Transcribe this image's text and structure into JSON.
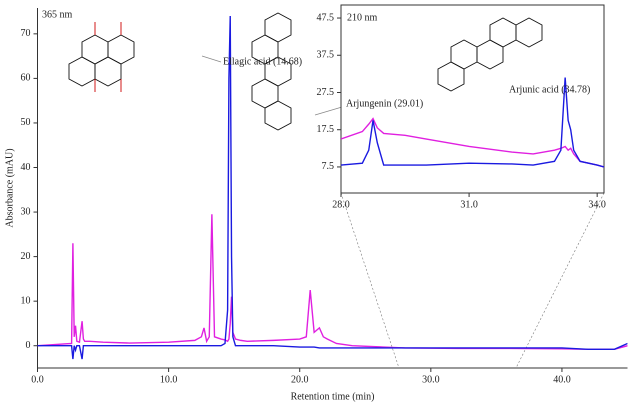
{
  "chart_data": [
    {
      "type": "line",
      "xlabel": "Retention time (min)",
      "ylabel": "Absorbance (mAU)",
      "annotations": [
        "365 nm",
        "Ellagic acid (14.68)"
      ],
      "xlim": [
        0,
        45
      ],
      "ylim": [
        -5,
        75.8
      ],
      "xticks": [
        {
          "value": 0,
          "label": "0.0"
        },
        {
          "value": 10,
          "label": "10.0"
        },
        {
          "value": 20,
          "label": "20.0"
        },
        {
          "value": 30,
          "label": "30.0"
        },
        {
          "value": 40,
          "label": "40.0"
        }
      ],
      "yticks": [
        0,
        10,
        20,
        30,
        40,
        50,
        60,
        70
      ],
      "x": [
        0,
        2.6,
        2.7,
        2.8,
        2.9,
        3.0,
        3.2,
        3.4,
        3.5,
        3.6,
        4,
        5,
        7,
        10,
        12,
        12.5,
        12.7,
        12.9,
        13.1,
        13.3,
        13.5,
        14,
        14.3,
        14.5,
        14.6,
        14.7,
        14.8,
        14.9,
        15.1,
        15.5,
        16,
        18,
        20,
        20.5,
        20.8,
        21.1,
        21.5,
        21.8,
        22.1,
        22.8,
        24,
        28,
        32,
        36,
        40,
        42,
        44,
        45
      ],
      "series": [
        {
          "color": "#e020e0",
          "values": [
            0,
            0.5,
            23,
            2,
            4.5,
            1,
            0.8,
            5.5,
            1.5,
            1,
            1,
            0.8,
            0.6,
            0.8,
            1.2,
            2,
            4,
            1,
            2,
            29.5,
            2,
            1.5,
            1.3,
            1,
            1.5,
            5,
            11,
            3,
            1.5,
            1.2,
            1,
            1.2,
            1.5,
            2,
            12.5,
            3,
            4,
            2,
            1.5,
            0.5,
            0,
            -0.5,
            -0.6,
            -0.6,
            -0.7,
            -0.8,
            -0.8,
            0
          ]
        },
        {
          "color": "#1a1ae0",
          "values": [
            0,
            0,
            -3,
            0,
            -1,
            0,
            0,
            -3,
            0,
            0,
            0,
            0,
            0,
            0,
            0,
            0,
            0,
            0,
            0,
            0,
            0,
            0,
            0.5,
            8,
            60,
            74,
            20,
            2,
            0,
            0,
            0,
            0,
            -0.3,
            -0.3,
            -0.3,
            -0.3,
            -0.5,
            -0.5,
            -0.5,
            -0.5,
            -0.5,
            -0.5,
            -0.5,
            -0.5,
            -0.5,
            -0.8,
            -0.8,
            0.5
          ]
        }
      ]
    },
    {
      "type": "line",
      "annotations": [
        "210 nm",
        "Arjungenin (29.01)",
        "Arjunic acid (34.78)"
      ],
      "xlim": [
        28,
        34.16
      ],
      "ylim": [
        0.5,
        51
      ],
      "xticks": [
        {
          "value": 28,
          "label": "28.0"
        },
        {
          "value": 31,
          "label": "31.0"
        },
        {
          "value": 34,
          "label": "34.0"
        }
      ],
      "yticks": [
        7.5,
        17.5,
        27.5,
        37.5,
        47.5
      ],
      "x": [
        28,
        28.5,
        28.65,
        28.75,
        28.85,
        29,
        29.5,
        30,
        31,
        32,
        32.5,
        33,
        33.15,
        33.25,
        33.32,
        33.38,
        33.45,
        33.6,
        34,
        34.16
      ],
      "series": [
        {
          "color": "#e020e0",
          "values": [
            15,
            17,
            19,
            20.5,
            18,
            16.5,
            16,
            15,
            13,
            11.5,
            11,
            12,
            12.5,
            13,
            12,
            12.5,
            11,
            9,
            8,
            7.5
          ]
        },
        {
          "color": "#1a1ae0",
          "values": [
            8,
            8.5,
            12,
            20,
            14,
            8,
            8,
            8,
            8.5,
            8.3,
            8,
            9,
            12,
            31.5,
            20,
            17.5,
            12,
            9,
            8,
            7.5
          ]
        }
      ]
    }
  ]
}
